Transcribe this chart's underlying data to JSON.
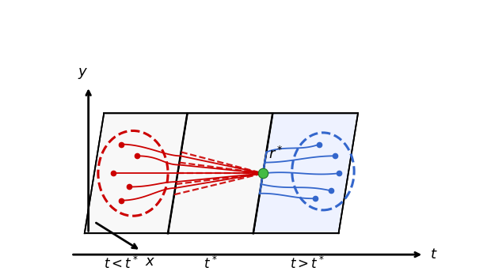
{
  "fig_width": 6.2,
  "fig_height": 3.48,
  "dpi": 100,
  "background_color": "#ffffff",
  "red_color": "#cc0000",
  "blue_color": "#3366cc",
  "green_color": "#44bb44",
  "label_t_less": "$t < t^*$",
  "label_t_star": "$t^*$",
  "label_t_greater": "$t > t^*$",
  "label_t": "$t$",
  "label_y": "$y$",
  "label_x": "$x$",
  "label_r_star": "$r^*$",
  "font_size": 12
}
